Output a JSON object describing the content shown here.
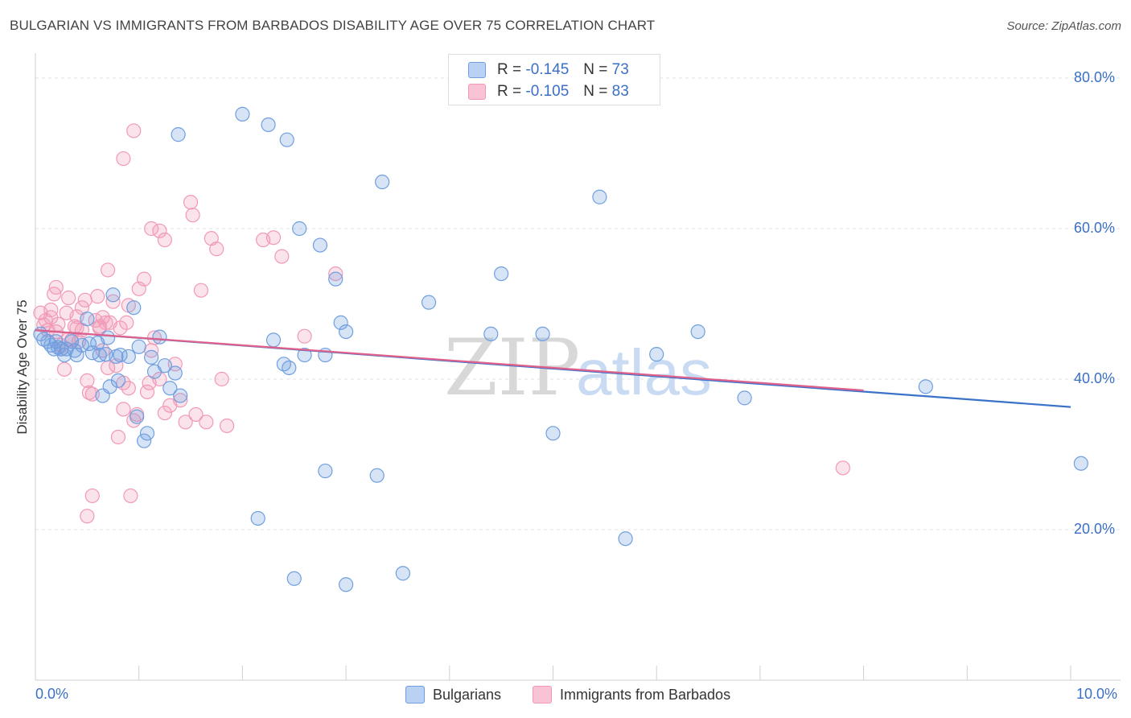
{
  "title": "BULGARIAN VS IMMIGRANTS FROM BARBADOS DISABILITY AGE OVER 75 CORRELATION CHART",
  "source": "Source: ZipAtlas.com",
  "watermark": {
    "zip": "ZIP",
    "atlas": "atlas"
  },
  "legend_top": [
    {
      "r_label": "R =",
      "r_value": "-0.145",
      "n_label": "N =",
      "n_value": "73"
    },
    {
      "r_label": "R =",
      "r_value": "-0.105",
      "n_label": "N =",
      "n_value": "83"
    }
  ],
  "legend_bottom": [
    "Bulgarians",
    "Immigrants from Barbados"
  ],
  "colors": {
    "blue": "#6f9fe0",
    "blue_line": "#3a72c9",
    "pink": "#f199b6",
    "pink_line": "#e0608c",
    "tick": "#3a6fc4"
  },
  "chart_data": {
    "type": "scatter",
    "xlabel": "",
    "ylabel": "Disability Age Over 75",
    "xlim": [
      0,
      10
    ],
    "ylim": [
      0,
      85
    ],
    "x_tick_labels": [
      "0.0%",
      "10.0%"
    ],
    "y_ticks": [
      20,
      40,
      60,
      80
    ],
    "y_tick_labels": [
      "20.0%",
      "40.0%",
      "60.0%",
      "80.0%"
    ],
    "grid": true,
    "series": [
      {
        "name": "Bulgarians",
        "trend": {
          "x": [
            0.0,
            10.0
          ],
          "y": [
            46.5,
            36.3
          ]
        },
        "points": [
          [
            0.05,
            46.0
          ],
          [
            0.08,
            45.3
          ],
          [
            0.12,
            45.0
          ],
          [
            0.15,
            44.5
          ],
          [
            0.18,
            44.0
          ],
          [
            0.2,
            45.0
          ],
          [
            0.22,
            44.2
          ],
          [
            0.25,
            44.0
          ],
          [
            0.28,
            43.2
          ],
          [
            0.3,
            44.0
          ],
          [
            0.35,
            45.0
          ],
          [
            0.38,
            43.8
          ],
          [
            0.4,
            43.2
          ],
          [
            0.45,
            44.5
          ],
          [
            0.5,
            48.0
          ],
          [
            0.52,
            44.7
          ],
          [
            0.55,
            43.5
          ],
          [
            0.6,
            44.8
          ],
          [
            0.62,
            43.2
          ],
          [
            0.65,
            37.8
          ],
          [
            0.68,
            43.3
          ],
          [
            0.7,
            45.5
          ],
          [
            0.72,
            39.0
          ],
          [
            0.75,
            51.2
          ],
          [
            0.78,
            43.0
          ],
          [
            0.8,
            39.8
          ],
          [
            0.82,
            43.2
          ],
          [
            0.9,
            43.0
          ],
          [
            0.95,
            49.5
          ],
          [
            0.98,
            35.0
          ],
          [
            1.0,
            44.3
          ],
          [
            1.05,
            31.8
          ],
          [
            1.08,
            32.8
          ],
          [
            1.12,
            42.9
          ],
          [
            1.15,
            41.0
          ],
          [
            1.2,
            45.6
          ],
          [
            1.25,
            41.8
          ],
          [
            1.3,
            38.8
          ],
          [
            1.35,
            40.8
          ],
          [
            1.4,
            37.8
          ],
          [
            1.38,
            72.5
          ],
          [
            2.0,
            75.2
          ],
          [
            2.25,
            73.8
          ],
          [
            2.43,
            71.8
          ],
          [
            2.55,
            60.0
          ],
          [
            2.6,
            43.2
          ],
          [
            2.75,
            57.8
          ],
          [
            2.8,
            43.2
          ],
          [
            2.9,
            53.3
          ],
          [
            2.95,
            47.5
          ],
          [
            3.0,
            46.3
          ],
          [
            3.35,
            66.2
          ],
          [
            3.8,
            50.2
          ],
          [
            4.4,
            46.0
          ],
          [
            4.5,
            54.0
          ],
          [
            4.9,
            46.0
          ],
          [
            5.0,
            32.8
          ],
          [
            5.45,
            64.2
          ],
          [
            5.7,
            18.8
          ],
          [
            6.0,
            43.3
          ],
          [
            6.4,
            46.3
          ],
          [
            6.85,
            37.5
          ],
          [
            8.6,
            39.0
          ],
          [
            10.1,
            28.8
          ],
          [
            2.15,
            21.5
          ],
          [
            2.5,
            13.5
          ],
          [
            3.0,
            12.7
          ],
          [
            3.55,
            14.2
          ],
          [
            2.8,
            27.8
          ],
          [
            3.3,
            27.2
          ],
          [
            2.3,
            45.2
          ],
          [
            2.4,
            42.0
          ],
          [
            2.45,
            41.5
          ]
        ]
      },
      {
        "name": "Immigrants from Barbados",
        "trend": {
          "x": [
            0.0,
            8.0
          ],
          "y": [
            46.5,
            38.5
          ]
        },
        "points": [
          [
            0.05,
            48.8
          ],
          [
            0.08,
            47.2
          ],
          [
            0.1,
            47.8
          ],
          [
            0.12,
            46.5
          ],
          [
            0.15,
            48.2
          ],
          [
            0.18,
            51.3
          ],
          [
            0.2,
            52.2
          ],
          [
            0.22,
            47.3
          ],
          [
            0.25,
            44.0
          ],
          [
            0.28,
            41.3
          ],
          [
            0.3,
            48.8
          ],
          [
            0.32,
            50.8
          ],
          [
            0.35,
            45.2
          ],
          [
            0.38,
            47.0
          ],
          [
            0.4,
            46.8
          ],
          [
            0.42,
            45.0
          ],
          [
            0.45,
            49.5
          ],
          [
            0.48,
            50.5
          ],
          [
            0.5,
            39.8
          ],
          [
            0.52,
            38.2
          ],
          [
            0.55,
            38.0
          ],
          [
            0.6,
            51.0
          ],
          [
            0.62,
            47.0
          ],
          [
            0.65,
            48.2
          ],
          [
            0.68,
            47.5
          ],
          [
            0.7,
            54.5
          ],
          [
            0.72,
            47.5
          ],
          [
            0.75,
            50.3
          ],
          [
            0.78,
            41.8
          ],
          [
            0.8,
            32.3
          ],
          [
            0.82,
            46.8
          ],
          [
            0.85,
            36.0
          ],
          [
            0.88,
            47.5
          ],
          [
            0.9,
            49.8
          ],
          [
            0.95,
            34.5
          ],
          [
            0.98,
            35.3
          ],
          [
            1.0,
            52.0
          ],
          [
            1.05,
            53.3
          ],
          [
            1.08,
            38.3
          ],
          [
            1.1,
            39.5
          ],
          [
            1.12,
            43.8
          ],
          [
            1.15,
            45.5
          ],
          [
            1.2,
            40.0
          ],
          [
            1.25,
            35.5
          ],
          [
            1.3,
            36.5
          ],
          [
            1.35,
            42.0
          ],
          [
            1.4,
            37.2
          ],
          [
            1.45,
            34.3
          ],
          [
            1.5,
            63.5
          ],
          [
            1.52,
            61.8
          ],
          [
            1.55,
            35.3
          ],
          [
            1.6,
            51.8
          ],
          [
            1.65,
            34.3
          ],
          [
            1.7,
            58.7
          ],
          [
            1.75,
            57.3
          ],
          [
            1.8,
            40.0
          ],
          [
            1.85,
            33.8
          ],
          [
            2.2,
            58.5
          ],
          [
            2.3,
            58.8
          ],
          [
            2.38,
            56.3
          ],
          [
            2.6,
            45.7
          ],
          [
            2.9,
            54.0
          ],
          [
            7.8,
            28.2
          ],
          [
            0.95,
            73.0
          ],
          [
            0.85,
            69.3
          ],
          [
            1.12,
            60.0
          ],
          [
            1.2,
            59.7
          ],
          [
            1.25,
            58.5
          ],
          [
            0.55,
            24.5
          ],
          [
            0.92,
            24.5
          ],
          [
            0.5,
            21.8
          ],
          [
            0.15,
            49.2
          ],
          [
            0.2,
            46.3
          ],
          [
            0.25,
            44.5
          ],
          [
            0.32,
            45.3
          ],
          [
            0.4,
            48.3
          ],
          [
            0.45,
            46.5
          ],
          [
            0.58,
            47.8
          ],
          [
            0.62,
            46.8
          ],
          [
            0.65,
            43.8
          ],
          [
            0.7,
            41.5
          ],
          [
            0.85,
            39.5
          ],
          [
            0.9,
            38.8
          ]
        ]
      }
    ]
  }
}
